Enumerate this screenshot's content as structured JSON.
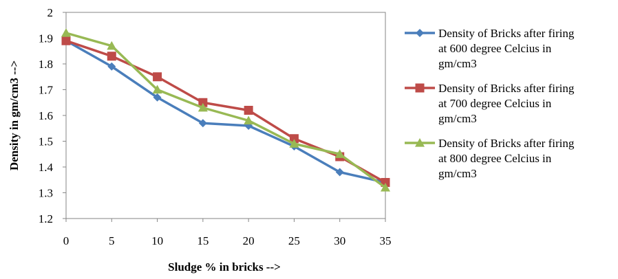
{
  "chart_data": {
    "type": "line",
    "title": "",
    "xlabel": "Sludge % in bricks -->",
    "ylabel": "Density in gm/cm3 -->",
    "x": [
      0,
      5,
      10,
      15,
      20,
      25,
      30,
      35
    ],
    "x_tick_labels": [
      "0",
      "5",
      "10",
      "15",
      "20",
      "25",
      "30",
      "35"
    ],
    "ylim": [
      1.2,
      2.0
    ],
    "y_ticks": [
      1.2,
      1.3,
      1.4,
      1.5,
      1.6,
      1.7,
      1.8,
      1.9,
      2.0
    ],
    "y_tick_labels": [
      "1.2",
      "1.3",
      "1.4",
      "1.5",
      "1.6",
      "1.7",
      "1.8",
      "1.9",
      "2"
    ],
    "grid": false,
    "legend_position": "right",
    "series": [
      {
        "name": "Density of Bricks after firing at 600  degree Celcius in gm/cm3",
        "legend_lines": [
          "Density of Bricks after firing",
          "at 600  degree Celcius in",
          "gm/cm3"
        ],
        "values": [
          1.89,
          1.79,
          1.67,
          1.57,
          1.56,
          1.48,
          1.38,
          1.34
        ],
        "color": "#4a7ebb",
        "marker": "diamond"
      },
      {
        "name": "Density of Bricks after firing at 700 degree Celcius in gm/cm3",
        "legend_lines": [
          "Density of Bricks after firing",
          "at 700 degree Celcius in",
          "gm/cm3"
        ],
        "values": [
          1.89,
          1.83,
          1.75,
          1.65,
          1.62,
          1.51,
          1.44,
          1.34
        ],
        "color": "#be4b48",
        "marker": "square"
      },
      {
        "name": "Density of Bricks after firing at 800 degree Celcius in gm/cm3",
        "legend_lines": [
          "Density of Bricks after firing",
          "at 800 degree Celcius in",
          "gm/cm3"
        ],
        "values": [
          1.92,
          1.87,
          1.7,
          1.63,
          1.58,
          1.49,
          1.45,
          1.32
        ],
        "color": "#98b954",
        "marker": "triangle"
      }
    ]
  }
}
